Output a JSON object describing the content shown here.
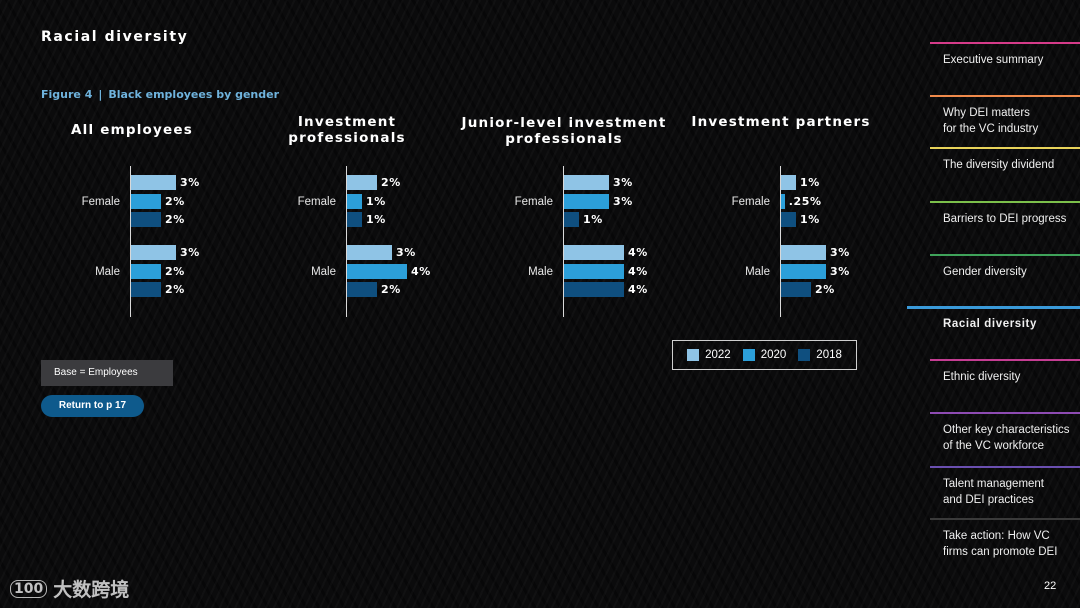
{
  "page": {
    "title": "Racial diversity",
    "page_number": "22"
  },
  "figure": {
    "label": "Figure 4",
    "separator": "|",
    "title": "Black employees by gender"
  },
  "colors": {
    "2022": "#8fc4e6",
    "2020": "#2c9fd9",
    "2018": "#0f4f7f",
    "accent_caption": "#6fb3dd",
    "button": "#0e5a8c"
  },
  "chart_data": [
    {
      "type": "bar",
      "title": "All employees",
      "categories": [
        "Female",
        "Male"
      ],
      "series": [
        {
          "name": "2022",
          "values": [
            3,
            3
          ],
          "labels": [
            "3%",
            "3%"
          ]
        },
        {
          "name": "2020",
          "values": [
            2,
            2
          ],
          "labels": [
            "2%",
            "2%"
          ]
        },
        {
          "name": "2018",
          "values": [
            2,
            2
          ],
          "labels": [
            "2%",
            "2%"
          ]
        }
      ]
    },
    {
      "type": "bar",
      "title": "Investment professionals",
      "categories": [
        "Female",
        "Male"
      ],
      "series": [
        {
          "name": "2022",
          "values": [
            2,
            3
          ],
          "labels": [
            "2%",
            "3%"
          ]
        },
        {
          "name": "2020",
          "values": [
            1,
            4
          ],
          "labels": [
            "1%",
            "4%"
          ]
        },
        {
          "name": "2018",
          "values": [
            1,
            2
          ],
          "labels": [
            "1%",
            "2%"
          ]
        }
      ]
    },
    {
      "type": "bar",
      "title": "Junior-level investment professionals",
      "categories": [
        "Female",
        "Male"
      ],
      "series": [
        {
          "name": "2022",
          "values": [
            3,
            4
          ],
          "labels": [
            "3%",
            "4%"
          ]
        },
        {
          "name": "2020",
          "values": [
            3,
            4
          ],
          "labels": [
            "3%",
            "4%"
          ]
        },
        {
          "name": "2018",
          "values": [
            1,
            4
          ],
          "labels": [
            "1%",
            "4%"
          ]
        }
      ]
    },
    {
      "type": "bar",
      "title": "Investment partners",
      "categories": [
        "Female",
        "Male"
      ],
      "series": [
        {
          "name": "2022",
          "values": [
            1,
            3
          ],
          "labels": [
            "1%",
            "3%"
          ]
        },
        {
          "name": "2020",
          "values": [
            0.25,
            3
          ],
          "labels": [
            ".25%",
            "3%"
          ]
        },
        {
          "name": "2018",
          "values": [
            1,
            2
          ],
          "labels": [
            "1%",
            "2%"
          ]
        }
      ]
    }
  ],
  "legend": {
    "items": [
      "2022",
      "2020",
      "2018"
    ]
  },
  "base_note": "Base = Employees",
  "return_button": "Return to p 17",
  "nav": [
    {
      "label": "Executive summary",
      "color": "#d63b8a"
    },
    {
      "label": "Why DEI matters\nfor the VC industry",
      "color": "#f08a4b"
    },
    {
      "label": "The diversity dividend",
      "color": "#e8d35a"
    },
    {
      "label": "Barriers to DEI progress",
      "color": "#7cc04b"
    },
    {
      "label": "Gender diversity",
      "color": "#3fa35a"
    },
    {
      "label": "Racial diversity",
      "color": "#3a9ad9",
      "active": true
    },
    {
      "label": "Ethnic diversity",
      "color": "#c53d93"
    },
    {
      "label": "Other key characteristics\nof the VC workforce",
      "color": "#8e4bb3"
    },
    {
      "label": "Talent management\nand DEI practices",
      "color": "#6a4fb0"
    },
    {
      "label": "Take action: How VC\nfirms can promote DEI",
      "color": "#3a3a3a"
    }
  ],
  "watermark": {
    "logo": "100",
    "text": "大数跨境"
  }
}
